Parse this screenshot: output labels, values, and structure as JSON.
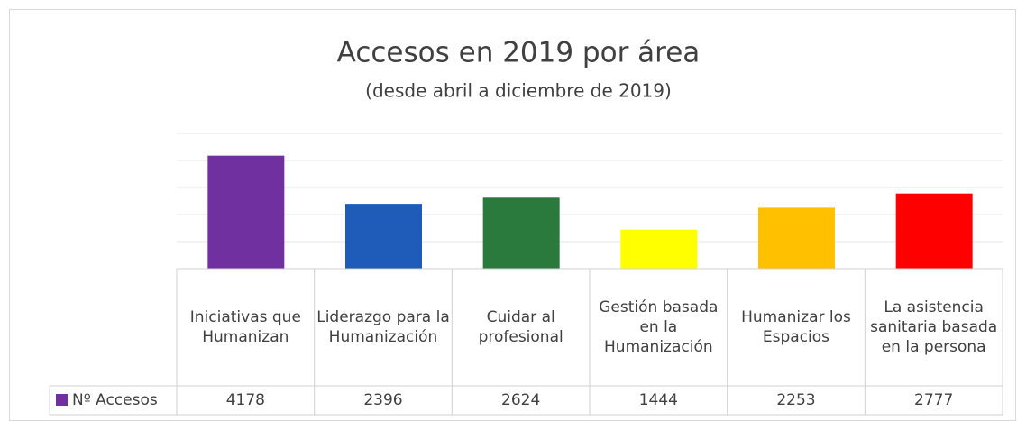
{
  "chart_data": {
    "type": "bar",
    "title": "Accesos en 2019 por área",
    "subtitle": "(desde abril a diciembre de 2019)",
    "categories": [
      "Iniciativas que Humanizan",
      "Liderazgo para la Humanización",
      "Cuidar al profesional",
      "Gestión basada en la Humanización",
      "Humanizar los Espacios",
      "La asistencia sanitaria basada en la persona"
    ],
    "series": [
      {
        "name": "Nº Accesos",
        "color": "#7030a0",
        "values": [
          4178,
          2396,
          2624,
          1444,
          2253,
          2777
        ]
      }
    ],
    "colors": [
      "#7030a0",
      "#1f5bb8",
      "#2a7a3e",
      "#ffff00",
      "#ffc000",
      "#ff0000"
    ],
    "ylim": [
      0,
      5000
    ],
    "yticks": [
      0,
      1000,
      2000,
      3000,
      4000,
      5000
    ],
    "grid": true
  }
}
